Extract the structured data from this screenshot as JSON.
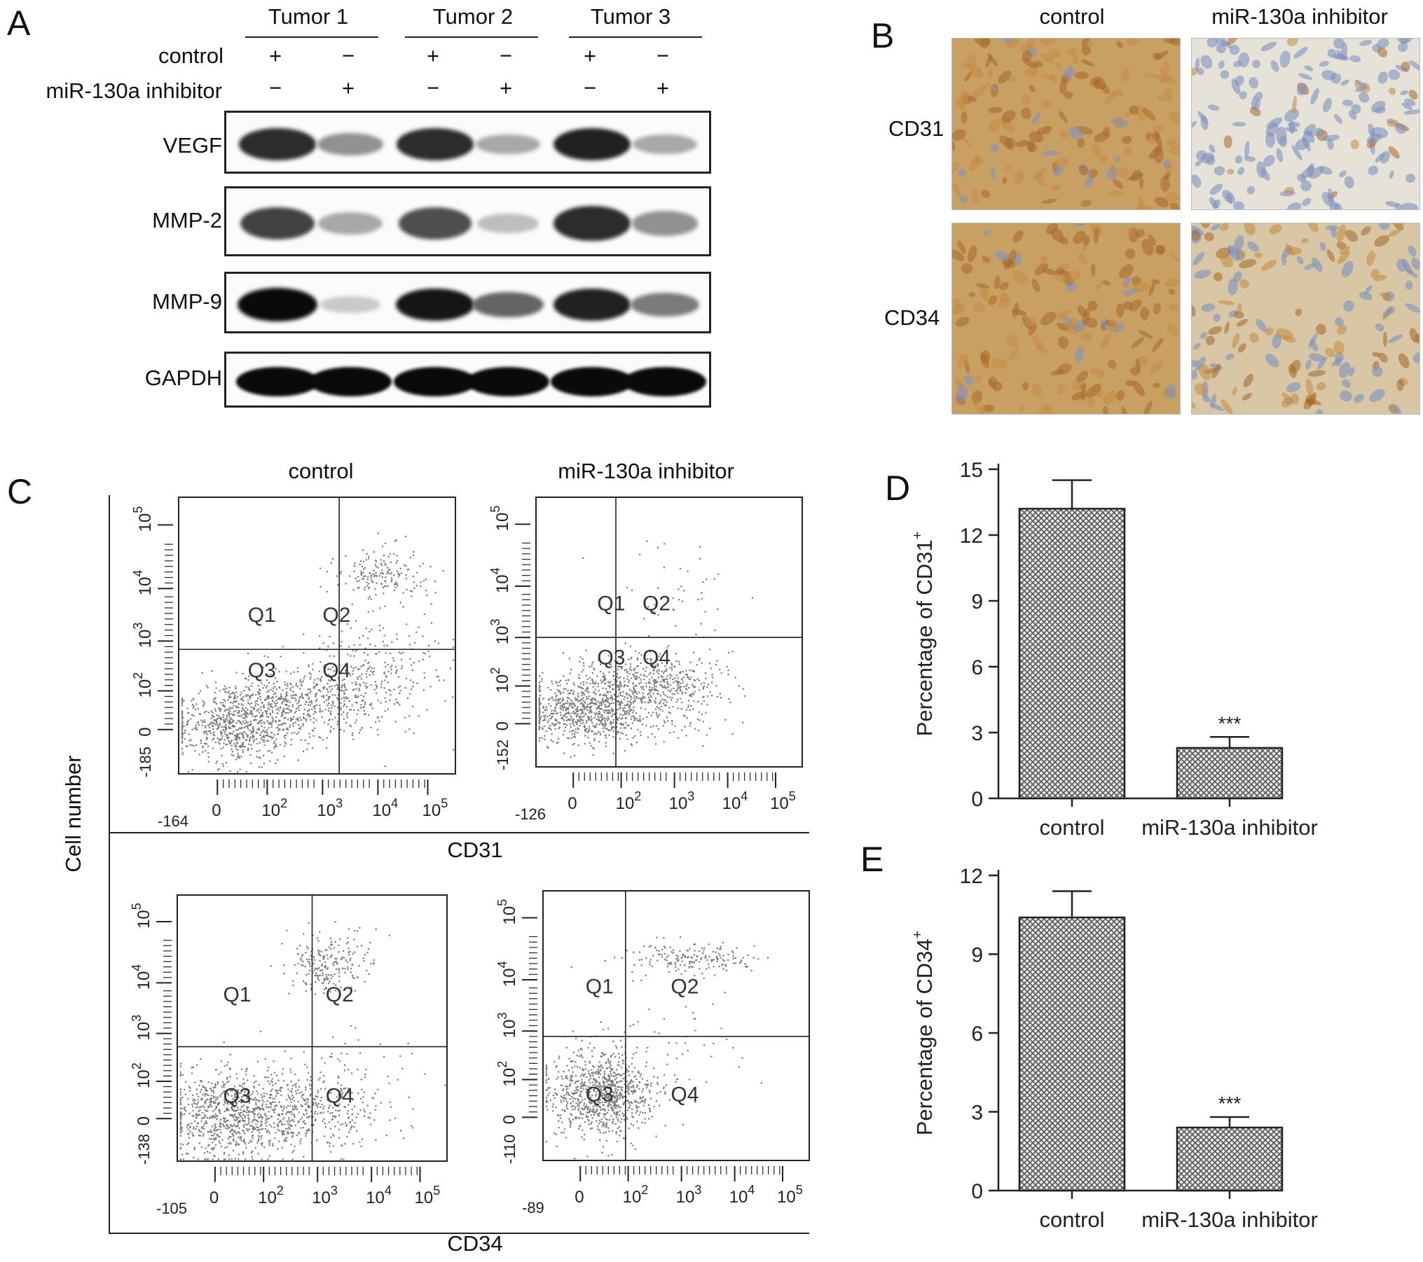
{
  "panel_letters": {
    "a": "A",
    "b": "B",
    "c": "C",
    "d": "D",
    "e": "E"
  },
  "panel_a": {
    "tumors": [
      "Tumor 1",
      "Tumor 2",
      "Tumor 3"
    ],
    "row_labels": [
      "control",
      "miR-130a inhibitor"
    ],
    "control_signs": [
      "+",
      "−",
      "+",
      "−",
      "+",
      "−"
    ],
    "inhibitor_signs": [
      "−",
      "+",
      "−",
      "+",
      "−",
      "+"
    ],
    "proteins": [
      "VEGF",
      "MMP-2",
      "MMP-9",
      "GAPDH"
    ],
    "band_intensity": {
      "VEGF": [
        0.85,
        0.4,
        0.85,
        0.3,
        0.9,
        0.3
      ],
      "MMP-2": [
        0.75,
        0.3,
        0.7,
        0.2,
        0.85,
        0.4
      ],
      "MMP-9": [
        1.0,
        0.15,
        0.95,
        0.6,
        0.9,
        0.5
      ],
      "GAPDH": [
        1.0,
        1.0,
        1.0,
        1.0,
        1.0,
        1.0
      ]
    }
  },
  "panel_b": {
    "col_headers": [
      "control",
      "miR-130a inhibitor"
    ],
    "row_labels": [
      "CD31",
      "CD34"
    ],
    "stain_level": [
      [
        0.9,
        0.1
      ],
      [
        0.9,
        0.5
      ]
    ]
  },
  "panel_c": {
    "col_headers": [
      "control",
      "miR-130a inhibitor"
    ],
    "y_axis_label": "Cell number",
    "x_axis_labels": [
      "CD31",
      "CD34"
    ],
    "quadrants": [
      "Q1",
      "Q2",
      "Q3",
      "Q4"
    ],
    "plots": [
      {
        "row": 0,
        "col": 0,
        "ymin": "-185",
        "xmin": "-164"
      },
      {
        "row": 0,
        "col": 1,
        "ymin": "-152",
        "xmin": "-126"
      },
      {
        "row": 1,
        "col": 0,
        "ymin": "-138",
        "xmin": "-105"
      },
      {
        "row": 1,
        "col": 1,
        "ymin": "-110",
        "xmin": "-89"
      }
    ],
    "tick_labels": [
      "0",
      "10",
      "10",
      "10",
      "10"
    ],
    "tick_exponents": [
      "",
      "2",
      "3",
      "4",
      "5"
    ]
  },
  "chart_data": [
    {
      "type": "bar",
      "panel": "D",
      "categories": [
        "control",
        "miR-130a inhibitor"
      ],
      "values": [
        13.2,
        2.3
      ],
      "errors": [
        1.3,
        0.5
      ],
      "ylabel": "Percentage of CD31",
      "ylabel_sup": "+",
      "ylim": [
        0,
        15
      ],
      "yticks": [
        "0",
        "3",
        "6",
        "9",
        "12",
        "15"
      ],
      "annotations": [
        "",
        "***"
      ]
    },
    {
      "type": "bar",
      "panel": "E",
      "categories": [
        "control",
        "miR-130a inhibitor"
      ],
      "values": [
        10.4,
        2.4
      ],
      "errors": [
        1.0,
        0.4
      ],
      "ylabel": "Percentage of CD34",
      "ylabel_sup": "+",
      "ylim": [
        0,
        12
      ],
      "yticks": [
        "0",
        "3",
        "6",
        "9",
        "12"
      ],
      "annotations": [
        "",
        "***"
      ]
    }
  ]
}
